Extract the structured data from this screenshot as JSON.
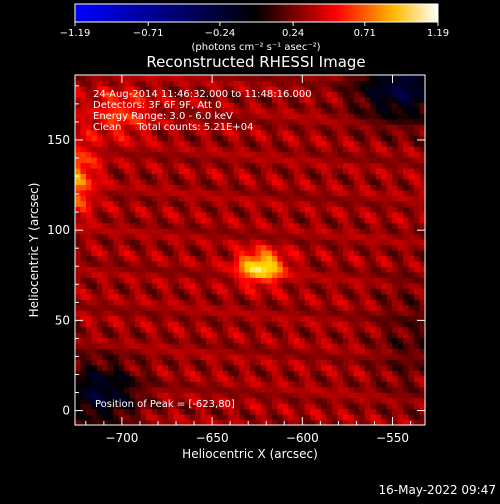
{
  "chart_data": {
    "type": "heatmap",
    "title": "Reconstructed RHESSI Image",
    "xlabel": "Heliocentric X (arcsec)",
    "ylabel": "Heliocentric Y (arcsec)",
    "xlim": [
      -726,
      -532
    ],
    "ylim": [
      -8,
      186
    ],
    "x_ticks": [
      -700,
      -650,
      -600,
      -550
    ],
    "x_tick_labels": [
      "−700",
      "−650",
      "−600",
      "−550"
    ],
    "y_ticks": [
      0,
      50,
      100,
      150
    ],
    "y_tick_labels": [
      "0",
      "50",
      "100",
      "150"
    ],
    "colorbar": {
      "min": -1.19,
      "max": 1.19,
      "tick_values": [
        -1.19,
        -0.71,
        -0.24,
        0.24,
        0.71,
        1.19
      ],
      "tick_labels": [
        "−1.19",
        "−0.71",
        "−0.24",
        "0.24",
        "0.71",
        "1.19"
      ],
      "units_text": "(photons cm⁻² s⁻¹ asec⁻²)",
      "colormap": [
        "#0000ff",
        "#000000",
        "#ff0000",
        "#ffff00",
        "#ffffff"
      ]
    },
    "info_lines": [
      "24-Aug-2014 11:46:32.000 to 11:48:16.000",
      "Detectors: 3F 6F 9F, Att 0",
      "Energy Range: 3.0 - 6.0 keV",
      "Clean     Total counts: 5.21E+04"
    ],
    "peak_label": "Position of Peak = [-623,80]",
    "peak": {
      "x": -623,
      "y": 80,
      "value": 1.19
    },
    "sources": [
      {
        "x": -623,
        "y": 80,
        "amp": 0.78,
        "sx": 9,
        "sy": 6
      },
      {
        "x": -726,
        "y": 130,
        "amp": 0.45,
        "sx": 8,
        "sy": 14
      },
      {
        "x": -700,
        "y": 165,
        "amp": 0.28,
        "sx": 12,
        "sy": 10
      }
    ],
    "dim_regions": [
      {
        "x": -545,
        "y": 180,
        "amp": -0.55,
        "sx": 18,
        "sy": 14
      },
      {
        "x": -712,
        "y": 10,
        "amp": -0.5,
        "sx": 15,
        "sy": 12
      },
      {
        "x": -540,
        "y": 40,
        "amp": -0.15,
        "sx": 14,
        "sy": 25
      }
    ],
    "background_level": 0.32
  },
  "footer": {
    "timestamp": "16-May-2022 09:47"
  }
}
